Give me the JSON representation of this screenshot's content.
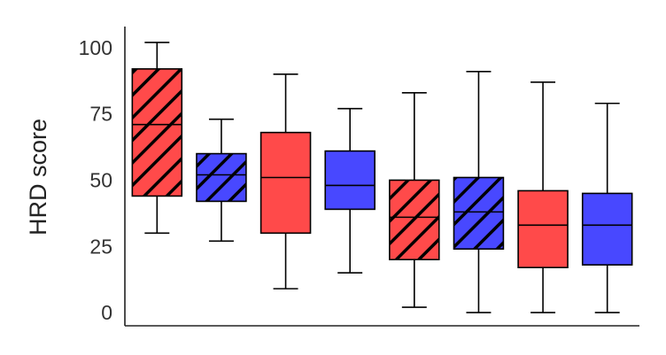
{
  "chart_data": {
    "type": "box",
    "title": "",
    "xlabel": "",
    "ylabel": "HRD score",
    "ylim": [
      -5,
      108
    ],
    "yticks": [
      0,
      25,
      50,
      75,
      100
    ],
    "grid": false,
    "legend": "none",
    "colors": {
      "red": "#ff4a4a",
      "blue": "#4848ff",
      "hatch": "#000000",
      "edge": "#000000"
    },
    "boxes": [
      {
        "color": "red",
        "hatched": true,
        "whisker_low": 30,
        "q1": 44,
        "median": 71,
        "q3": 92,
        "whisker_high": 102
      },
      {
        "color": "blue",
        "hatched": true,
        "whisker_low": 27,
        "q1": 42,
        "median": 52,
        "q3": 60,
        "whisker_high": 73
      },
      {
        "color": "red",
        "hatched": false,
        "whisker_low": 9,
        "q1": 30,
        "median": 51,
        "q3": 68,
        "whisker_high": 90
      },
      {
        "color": "blue",
        "hatched": false,
        "whisker_low": 15,
        "q1": 39,
        "median": 48,
        "q3": 61,
        "whisker_high": 77
      },
      {
        "color": "red",
        "hatched": true,
        "whisker_low": 2,
        "q1": 20,
        "median": 36,
        "q3": 50,
        "whisker_high": 83
      },
      {
        "color": "blue",
        "hatched": true,
        "whisker_low": 0,
        "q1": 24,
        "median": 38,
        "q3": 51,
        "whisker_high": 91
      },
      {
        "color": "red",
        "hatched": false,
        "whisker_low": 0,
        "q1": 17,
        "median": 33,
        "q3": 46,
        "whisker_high": 87
      },
      {
        "color": "blue",
        "hatched": false,
        "whisker_low": 0,
        "q1": 18,
        "median": 33,
        "q3": 45,
        "whisker_high": 79
      }
    ]
  }
}
